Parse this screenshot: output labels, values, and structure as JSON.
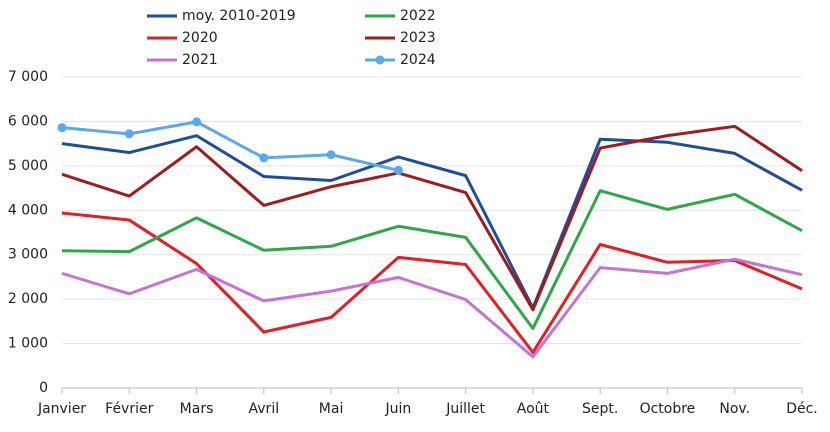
{
  "chart_data": {
    "type": "line",
    "categories": [
      "Janvier",
      "Février",
      "Mars",
      "Avril",
      "Mai",
      "Juin",
      "Juillet",
      "Août",
      "Sept.",
      "Octobre",
      "Nov.",
      "Déc."
    ],
    "series": [
      {
        "name": "moy. 2010-2019",
        "color": "#1f4e99",
        "values": [
          5500,
          5300,
          5680,
          4760,
          4670,
          5200,
          4780,
          1800,
          5600,
          5530,
          5280,
          4450
        ]
      },
      {
        "name": "2020",
        "color": "#e31e24",
        "values": [
          3940,
          3780,
          2800,
          1260,
          1590,
          2940,
          2780,
          800,
          3230,
          2830,
          2870,
          2230
        ]
      },
      {
        "name": "2021",
        "color": "#c374d4",
        "values": [
          2580,
          2120,
          2670,
          1960,
          2180,
          2490,
          1990,
          700,
          2710,
          2580,
          2900,
          2550
        ]
      },
      {
        "name": "2022",
        "color": "#2ea64a",
        "values": [
          3090,
          3070,
          3830,
          3100,
          3190,
          3640,
          3390,
          1340,
          4440,
          4020,
          4360,
          3540
        ]
      },
      {
        "name": "2023",
        "color": "#a01b1f",
        "values": [
          4810,
          4320,
          5430,
          4110,
          4530,
          4840,
          4400,
          1760,
          5400,
          5680,
          5890,
          4890
        ]
      },
      {
        "name": "2024",
        "color": "#5aa9f0",
        "markers": true,
        "values": [
          5860,
          5720,
          5990,
          5180,
          5250,
          4900,
          null,
          null,
          null,
          null,
          null,
          null
        ]
      }
    ],
    "ylim": [
      0,
      7000
    ],
    "yticks": [
      0,
      {
        "value": 1000,
        "label": "1 000"
      },
      {
        "value": 2000,
        "label": "2 000"
      },
      {
        "value": 3000,
        "label": "3 000"
      },
      {
        "value": 4000,
        "label": "4 000"
      },
      {
        "value": 5000,
        "label": "5 000"
      },
      {
        "value": 6000,
        "label": "6 000"
      },
      {
        "value": 7000,
        "label": "7 000"
      }
    ],
    "grid": true
  }
}
